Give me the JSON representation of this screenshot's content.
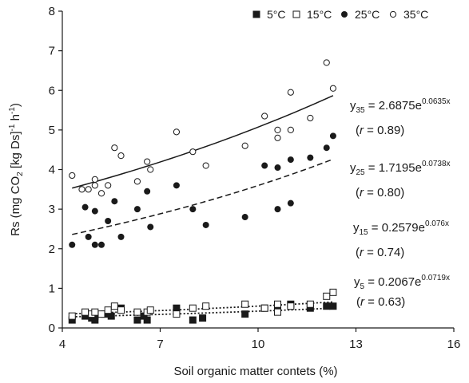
{
  "chart_data": {
    "type": "scatter",
    "title": "",
    "xlabel": "Soil organic matter contets (%)",
    "ylabel": {
      "main": "Rs (mg CO",
      "sub": "2",
      "mid": " [kg Ds]",
      "sup1": "-1",
      "after": " h",
      "sup2": "-1",
      "close": ")"
    },
    "xlim": [
      4,
      16
    ],
    "ylim": [
      0,
      8
    ],
    "xticks": [
      4,
      7,
      10,
      13,
      16
    ],
    "yticks": [
      0,
      1,
      2,
      3,
      4,
      5,
      6,
      7,
      8
    ],
    "legend_position": "top-right",
    "series": [
      {
        "name": "5°C",
        "marker": "square-filled",
        "line": "dotted",
        "fit": {
          "a": 0.2067,
          "b": 0.0719
        },
        "x": [
          4.3,
          4.7,
          4.9,
          5.0,
          5.0,
          5.3,
          5.5,
          5.8,
          6.3,
          6.5,
          6.6,
          7.5,
          8.0,
          8.3,
          9.6,
          10.2,
          10.6,
          10.6,
          11.0,
          11.6,
          12.1,
          12.3
        ],
        "y": [
          0.2,
          0.3,
          0.25,
          0.2,
          0.3,
          0.35,
          0.3,
          0.5,
          0.2,
          0.3,
          0.2,
          0.5,
          0.2,
          0.25,
          0.35,
          0.5,
          0.45,
          0.5,
          0.6,
          0.5,
          0.55,
          0.55
        ]
      },
      {
        "name": "15°C",
        "marker": "square-open",
        "line": "dotted",
        "fit": {
          "a": 0.2579,
          "b": 0.076
        },
        "x": [
          4.3,
          4.7,
          4.9,
          5.0,
          5.2,
          5.4,
          5.6,
          5.8,
          6.3,
          6.6,
          6.7,
          7.5,
          8.0,
          8.4,
          9.6,
          10.2,
          10.6,
          10.6,
          11.0,
          11.6,
          12.1,
          12.3
        ],
        "y": [
          0.3,
          0.4,
          0.35,
          0.4,
          0.35,
          0.45,
          0.55,
          0.45,
          0.4,
          0.4,
          0.45,
          0.35,
          0.5,
          0.55,
          0.6,
          0.5,
          0.4,
          0.6,
          0.55,
          0.6,
          0.8,
          0.9
        ]
      },
      {
        "name": "25°C",
        "marker": "circle-filled",
        "line": "dashed",
        "fit": {
          "a": 1.7195,
          "b": 0.0738
        },
        "x": [
          4.3,
          4.7,
          4.8,
          5.0,
          5.0,
          5.2,
          5.4,
          5.6,
          5.8,
          6.3,
          6.6,
          6.7,
          7.5,
          8.0,
          8.4,
          9.6,
          10.2,
          10.6,
          10.6,
          11.0,
          11.0,
          11.6,
          12.1,
          12.3
        ],
        "y": [
          2.1,
          3.05,
          2.3,
          2.1,
          2.95,
          2.1,
          2.7,
          3.2,
          2.3,
          3.0,
          3.45,
          2.55,
          3.6,
          3.0,
          2.6,
          2.8,
          4.1,
          3.0,
          4.05,
          3.15,
          4.25,
          4.3,
          4.55,
          4.85
        ]
      },
      {
        "name": "35°C",
        "marker": "circle-open",
        "line": "solid",
        "fit": {
          "a": 2.6875,
          "b": 0.0635
        },
        "x": [
          4.3,
          4.6,
          4.8,
          5.0,
          5.0,
          5.2,
          5.4,
          5.6,
          5.8,
          6.3,
          6.6,
          6.7,
          7.5,
          8.0,
          8.4,
          9.6,
          10.2,
          10.6,
          10.6,
          11.0,
          11.0,
          11.6,
          12.1,
          12.3
        ],
        "y": [
          3.85,
          3.5,
          3.5,
          3.6,
          3.75,
          3.4,
          3.6,
          4.55,
          4.35,
          3.7,
          4.2,
          4.0,
          4.95,
          4.45,
          4.1,
          4.6,
          5.35,
          4.8,
          5.0,
          5.0,
          5.95,
          5.3,
          6.7,
          6.05
        ]
      }
    ],
    "annotations": [
      {
        "y": "y",
        "sub": "35",
        "eq": " = 2.6875e",
        "sup": "0.0635x",
        "r": "= 0.89)"
      },
      {
        "y": "y",
        "sub": "25",
        "eq": " = 1.7195e",
        "sup": "0.0738x",
        "r": "= 0.80)"
      },
      {
        "y": "y",
        "sub": "15",
        "eq": " = 0.2579e",
        "sup": "0.076x",
        "r": "= 0.74)"
      },
      {
        "y": "y",
        "sub": "5",
        "eq": " = 0.2067e",
        "sup": "0.0719x",
        "r": "= 0.63)"
      }
    ],
    "r_prefix": "(",
    "r_symbol": "r",
    "colors": {
      "ink": "#1a1a1a",
      "background": "#ffffff"
    }
  }
}
